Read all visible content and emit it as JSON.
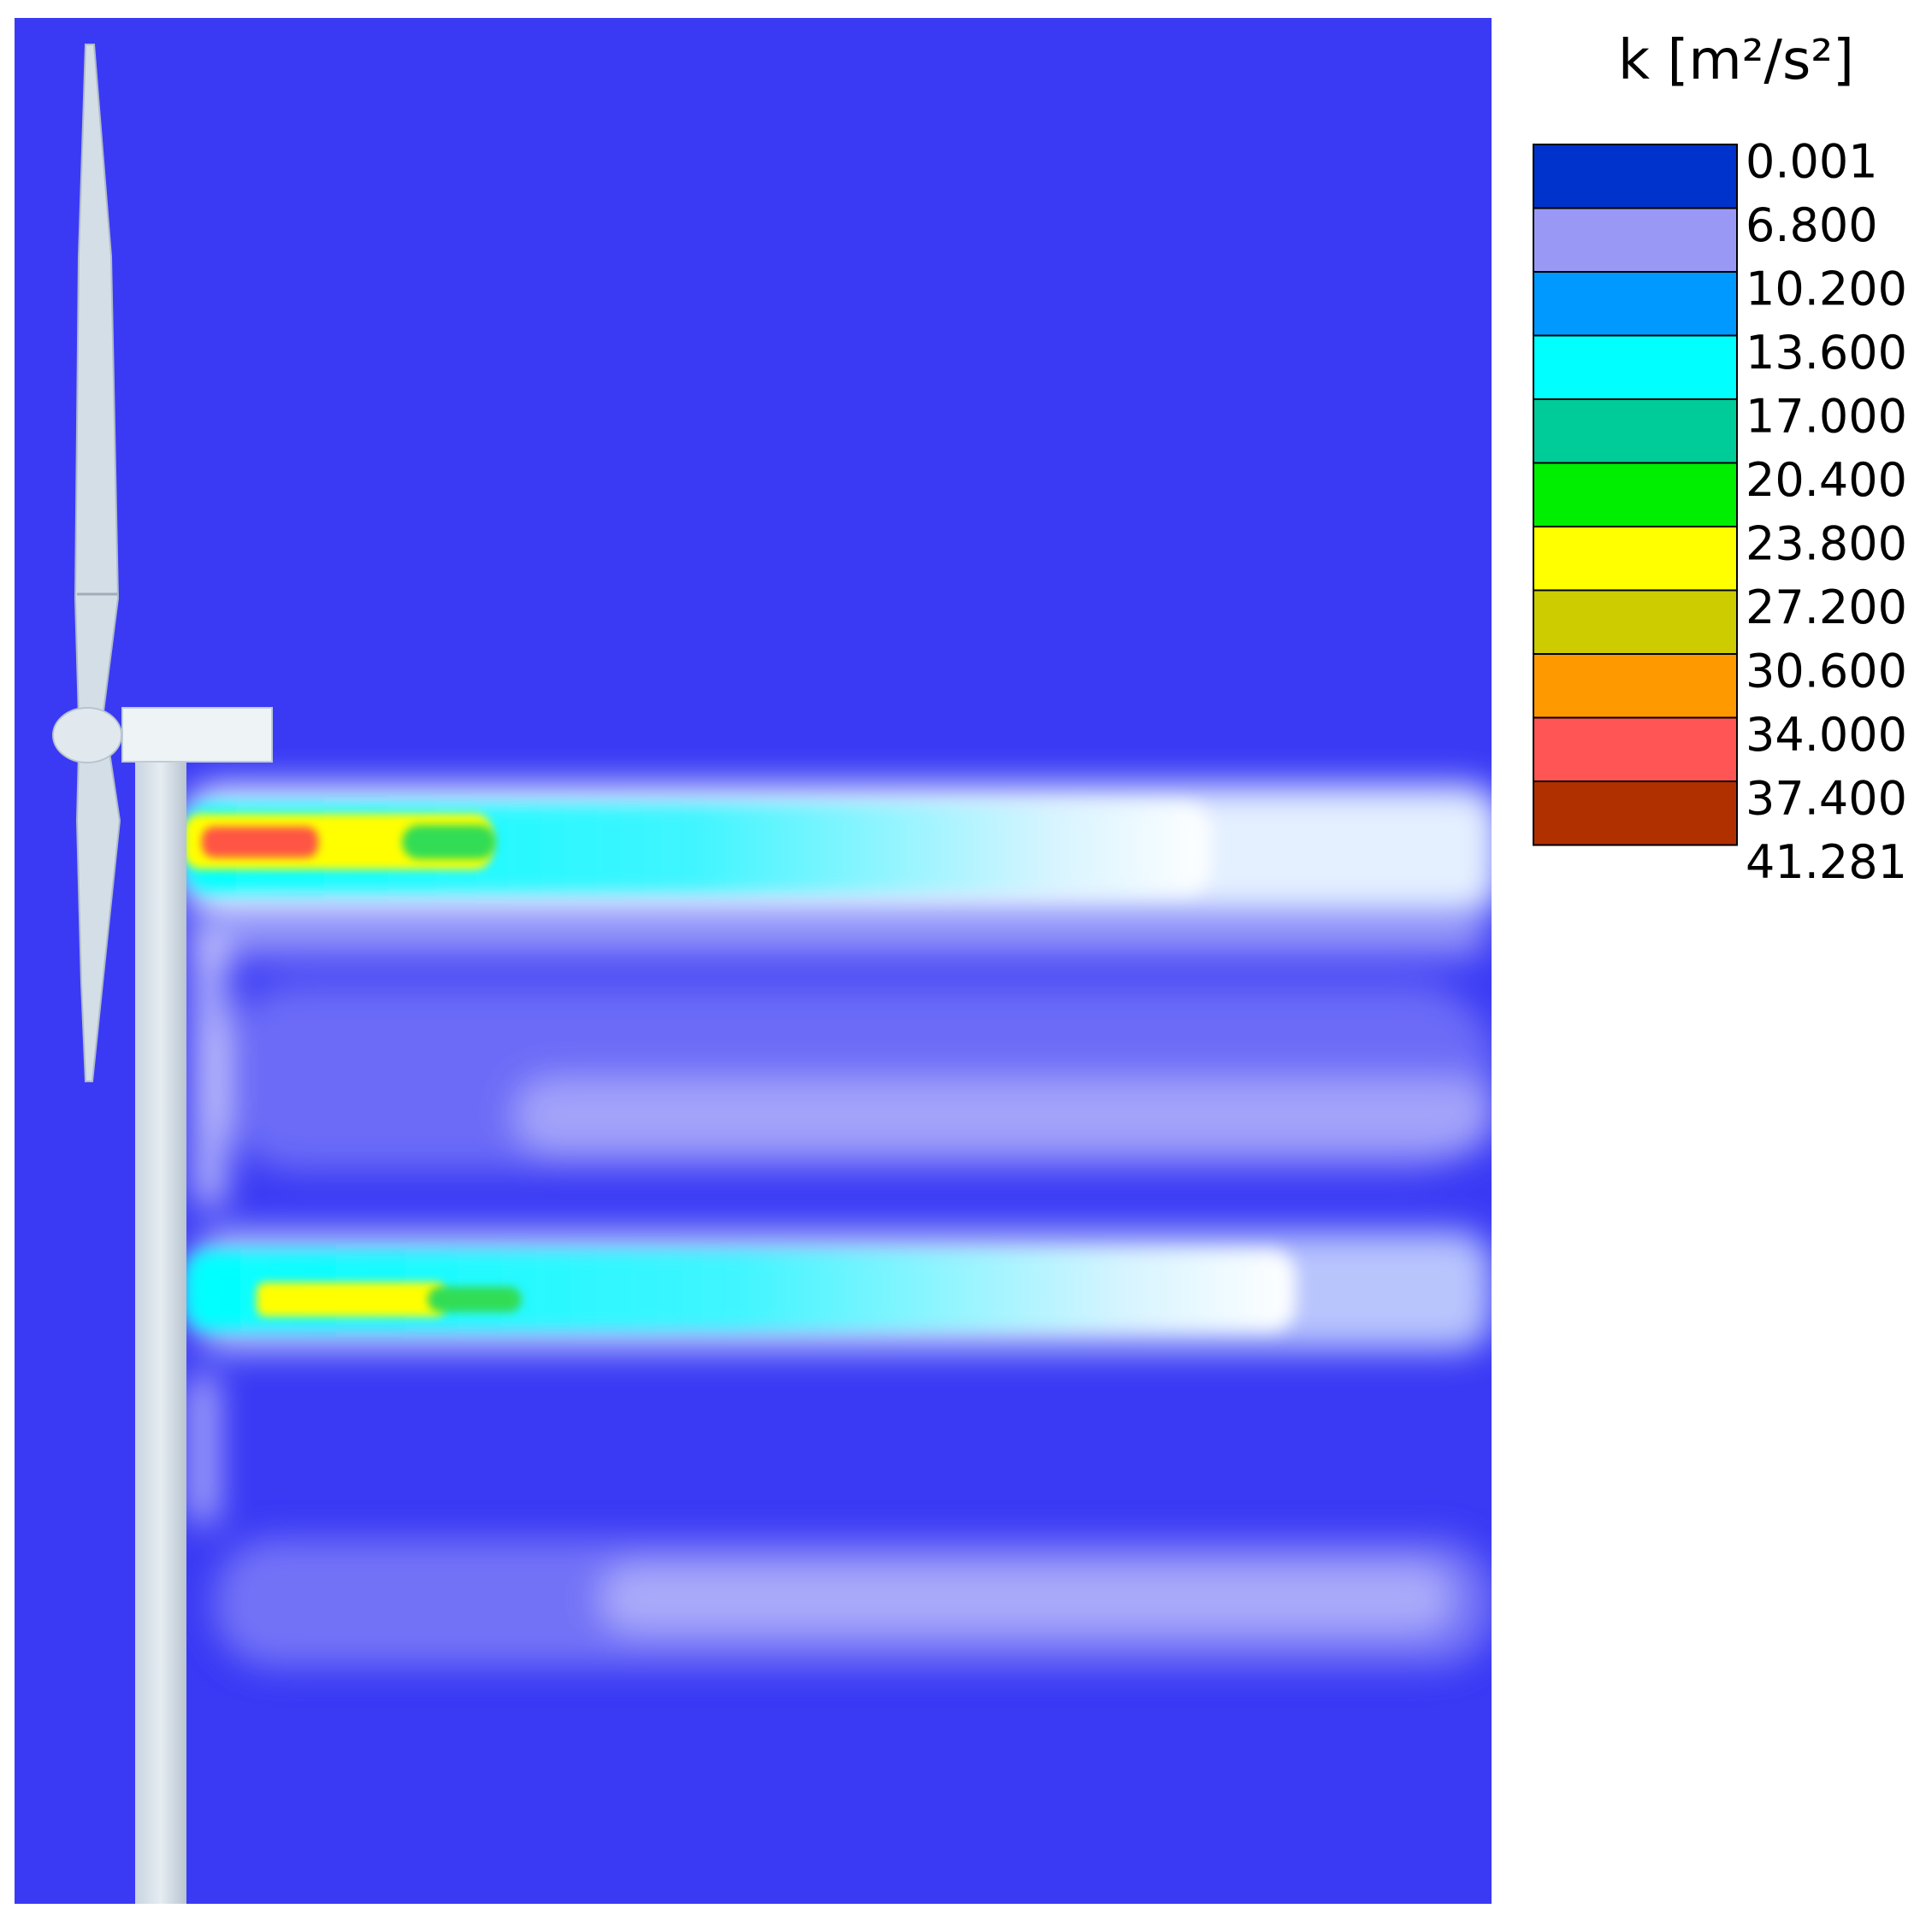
{
  "legend": {
    "title": "k [m²/s²]",
    "levels": [
      "0.001",
      "6.800",
      "10.200",
      "13.600",
      "17.000",
      "20.400",
      "23.800",
      "27.200",
      "30.600",
      "34.000",
      "37.400",
      "41.281"
    ],
    "colors": [
      "#0033cc",
      "#9999f5",
      "#0099ff",
      "#00ffff",
      "#00cc99",
      "#00ee00",
      "#ffff00",
      "#cccc00",
      "#ff9900",
      "#ff5555",
      "#b03000"
    ]
  }
}
